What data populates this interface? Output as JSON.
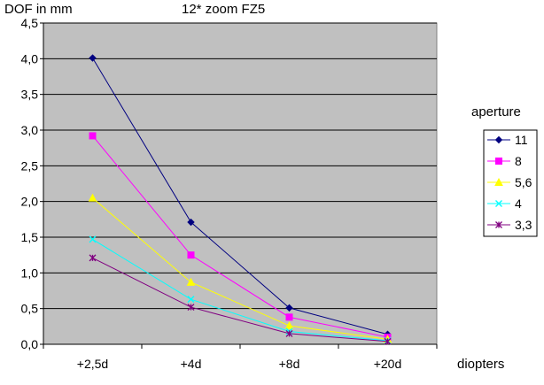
{
  "chart_data": {
    "type": "line",
    "title": "12* zoom FZ5",
    "ylabel": "DOF in mm",
    "xlabel": "diopters",
    "legend_title": "aperture",
    "legend_position": "right",
    "grid": true,
    "categories": [
      "+2,5d",
      "+4d",
      "+8d",
      "+20d"
    ],
    "ylim": [
      0,
      4.5
    ],
    "yticks": [
      0,
      0.5,
      1,
      1.5,
      2,
      2.5,
      3,
      3.5,
      4,
      4.5
    ],
    "ytick_labels": [
      "0,0",
      "0,5",
      "1,0",
      "1,5",
      "2,0",
      "2,5",
      "3,0",
      "3,5",
      "4,0",
      "4,5"
    ],
    "plot_background": "#c0c0c0",
    "series": [
      {
        "name": "11",
        "color": "#000080",
        "marker": "diamond",
        "values": [
          4.01,
          1.71,
          0.51,
          0.14
        ]
      },
      {
        "name": "8",
        "color": "#ff00ff",
        "marker": "square",
        "values": [
          2.92,
          1.25,
          0.38,
          0.1
        ]
      },
      {
        "name": "5,6",
        "color": "#ffff00",
        "marker": "triangle",
        "values": [
          2.05,
          0.87,
          0.26,
          0.07
        ]
      },
      {
        "name": "4",
        "color": "#00ffff",
        "marker": "x",
        "values": [
          1.47,
          0.63,
          0.18,
          0.05
        ]
      },
      {
        "name": "3,3",
        "color": "#800080",
        "marker": "star",
        "values": [
          1.21,
          0.52,
          0.15,
          0.04
        ]
      }
    ]
  }
}
